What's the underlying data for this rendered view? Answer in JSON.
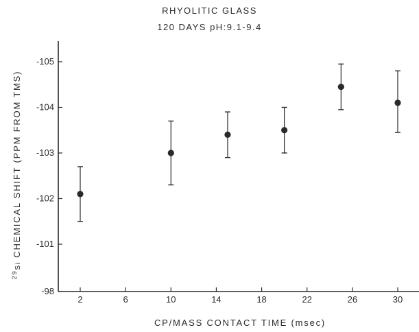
{
  "chart_data": {
    "type": "scatter",
    "title": "RHYOLITIC GLASS",
    "subtitle": "120 DAYS pH:9.1-9.4",
    "xlabel": "CP/MASS CONTACT TIME (msec)",
    "ylabel": {
      "isotope_mass": "29",
      "element": "Si",
      "text": " CHEMICAL SHIFT (PPM FROM TMS)"
    },
    "x_ticks": [
      2,
      6,
      10,
      14,
      18,
      22,
      26,
      30
    ],
    "x_tick_labels": [
      "2",
      "6",
      "10",
      "14",
      "18",
      "22",
      "26",
      "30"
    ],
    "y_tick_labels": [
      "-98",
      "-101",
      "-102",
      "-103",
      "-104",
      "-105"
    ],
    "y_scale_note": "axis break between -98 and -101",
    "xlim": [
      0,
      31.5
    ],
    "ylim_display": [
      -98,
      -105.5
    ],
    "grid": false,
    "points": [
      {
        "x": 2,
        "y": -102.1,
        "err_low": -101.5,
        "err_high": -102.7
      },
      {
        "x": 10,
        "y": -103.0,
        "err_low": -102.3,
        "err_high": -103.7
      },
      {
        "x": 15,
        "y": -103.4,
        "err_low": -102.9,
        "err_high": -103.9
      },
      {
        "x": 20,
        "y": -103.5,
        "err_low": -103.0,
        "err_high": -104.0
      },
      {
        "x": 25,
        "y": -104.45,
        "err_low": -103.95,
        "err_high": -104.95
      },
      {
        "x": 30,
        "y": -104.1,
        "err_low": -103.45,
        "err_high": -104.8
      }
    ],
    "colors": {
      "ink": "#2a2a2a"
    }
  }
}
